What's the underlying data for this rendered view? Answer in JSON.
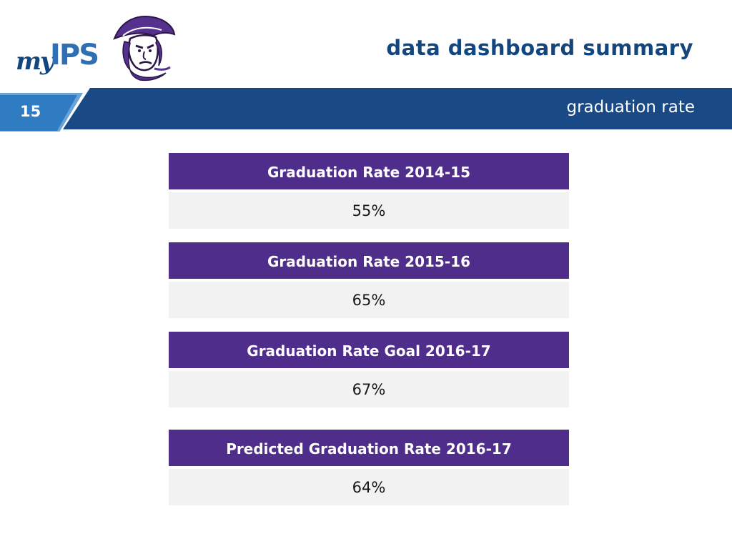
{
  "logo": {
    "my": "my",
    "ips": "IPS",
    "mascot_icon": "patriot-mascot-icon"
  },
  "header": {
    "title": "data dashboard summary"
  },
  "band": {
    "slide_number": "15",
    "subtitle": "graduation rate"
  },
  "metrics": [
    {
      "label": "Graduation Rate 2014-15",
      "value": "55%"
    },
    {
      "label": "Graduation Rate 2015-16",
      "value": "65%"
    },
    {
      "label": "Graduation Rate Goal 2016-17",
      "value": "67%"
    },
    {
      "label": "Predicted Graduation Rate 2016-17",
      "value": "64%"
    }
  ],
  "colors": {
    "brand_blue": "#1a4a86",
    "accent_blue": "#2f7cc3",
    "card_purple": "#4f2d8b",
    "card_grey": "#f2f2f2"
  }
}
